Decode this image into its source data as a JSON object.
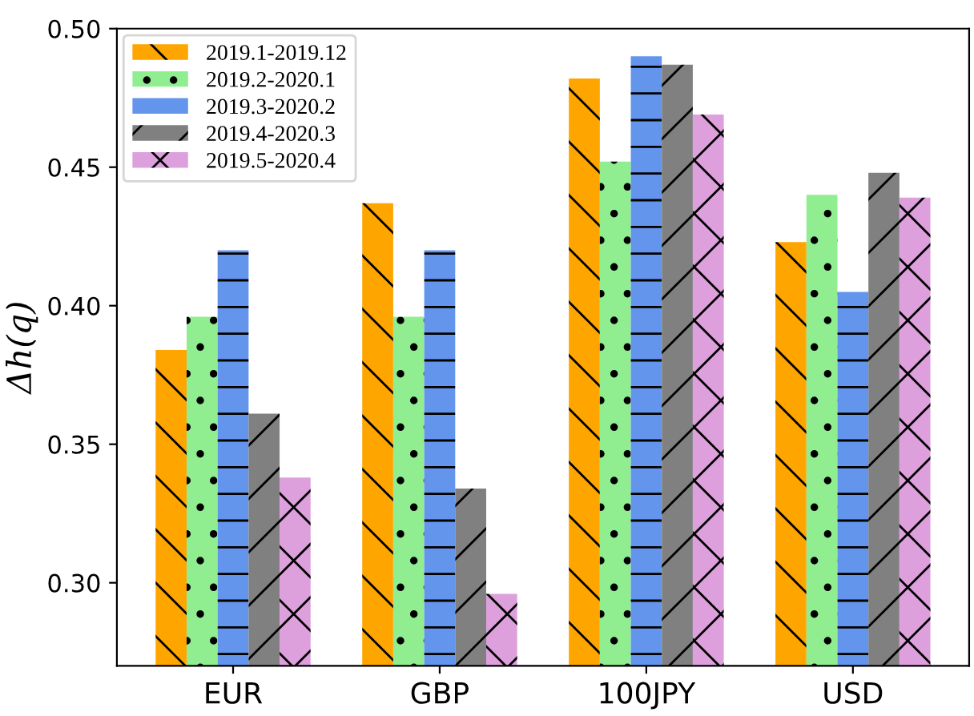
{
  "chart_data": {
    "type": "bar",
    "ylabel": "Δh(q)",
    "categories": [
      "EUR",
      "GBP",
      "100JPY",
      "USD"
    ],
    "series": [
      {
        "name": "2019.1-2019.12",
        "color": "#ffa500",
        "values": [
          0.384,
          0.437,
          0.482,
          0.423
        ]
      },
      {
        "name": "2019.2-2020.1",
        "color": "#90ee90",
        "values": [
          0.396,
          0.396,
          0.452,
          0.44
        ]
      },
      {
        "name": "2019.3-2020.2",
        "color": "#6495ed",
        "values": [
          0.42,
          0.42,
          0.49,
          0.405
        ]
      },
      {
        "name": "2019.4-2020.3",
        "color": "#808080",
        "values": [
          0.361,
          0.334,
          0.487,
          0.448
        ]
      },
      {
        "name": "2019.5-2020.4",
        "color": "#dda0dd",
        "values": [
          0.338,
          0.296,
          0.469,
          0.439
        ]
      }
    ],
    "ylim": [
      0.27,
      0.5
    ],
    "yticks": [
      {
        "value": 0.3,
        "label": "0.30"
      },
      {
        "value": 0.35,
        "label": "0.35"
      },
      {
        "value": 0.4,
        "label": "0.40"
      },
      {
        "value": 0.45,
        "label": "0.45"
      },
      {
        "value": 0.5,
        "label": "0.50"
      }
    ],
    "legend": "top left",
    "grid": false
  }
}
